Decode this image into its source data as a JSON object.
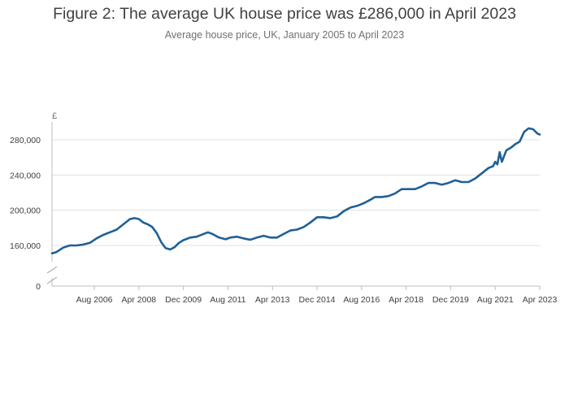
{
  "title": "Figure 2: The average UK house price was £286,000 in April 2023",
  "subtitle": "Average house price, UK, January 2005 to April 2023",
  "chart_data": {
    "type": "line",
    "ylabel": "£",
    "y_break": true,
    "y_baseline_label": "0",
    "yticks": [
      160000,
      200000,
      240000,
      280000
    ],
    "ytick_labels": [
      "160,000",
      "200,000",
      "240,000",
      "280,000"
    ],
    "ylim": [
      150000,
      300000
    ],
    "xlim": [
      "2005-01",
      "2023-04"
    ],
    "xticks": [
      "2006-08",
      "2008-04",
      "2009-12",
      "2011-08",
      "2013-04",
      "2014-12",
      "2016-08",
      "2018-04",
      "2019-12",
      "2021-08",
      "2023-04"
    ],
    "xtick_labels": [
      "Aug 2006",
      "Apr 2008",
      "Dec 2009",
      "Aug 2011",
      "Apr 2013",
      "Dec 2014",
      "Aug 2016",
      "Apr 2018",
      "Dec 2019",
      "Aug 2021",
      "Apr 2023"
    ],
    "grid": "horizontal",
    "color": "#206095",
    "series": [
      {
        "points": [
          [
            "2005-01",
            151000
          ],
          [
            "2005-03",
            152500
          ],
          [
            "2005-06",
            157500
          ],
          [
            "2005-09",
            160000
          ],
          [
            "2005-12",
            160000
          ],
          [
            "2006-03",
            161000
          ],
          [
            "2006-06",
            163000
          ],
          [
            "2006-09",
            168000
          ],
          [
            "2006-12",
            172000
          ],
          [
            "2007-03",
            175000
          ],
          [
            "2007-06",
            178000
          ],
          [
            "2007-09",
            184000
          ],
          [
            "2007-12",
            190000
          ],
          [
            "2008-02",
            191000
          ],
          [
            "2008-04",
            190000
          ],
          [
            "2008-06",
            186000
          ],
          [
            "2008-08",
            184000
          ],
          [
            "2008-10",
            181000
          ],
          [
            "2008-12",
            174000
          ],
          [
            "2009-02",
            164000
          ],
          [
            "2009-04",
            157000
          ],
          [
            "2009-06",
            155500
          ],
          [
            "2009-08",
            158000
          ],
          [
            "2009-10",
            163000
          ],
          [
            "2009-12",
            166000
          ],
          [
            "2010-03",
            169000
          ],
          [
            "2010-06",
            170000
          ],
          [
            "2010-09",
            173000
          ],
          [
            "2010-11",
            175000
          ],
          [
            "2011-01",
            173000
          ],
          [
            "2011-04",
            169000
          ],
          [
            "2011-07",
            167000
          ],
          [
            "2011-09",
            169000
          ],
          [
            "2011-12",
            170000
          ],
          [
            "2012-03",
            168000
          ],
          [
            "2012-06",
            166500
          ],
          [
            "2012-09",
            169000
          ],
          [
            "2012-12",
            171000
          ],
          [
            "2013-03",
            169000
          ],
          [
            "2013-06",
            169000
          ],
          [
            "2013-09",
            173000
          ],
          [
            "2013-12",
            177000
          ],
          [
            "2014-03",
            178000
          ],
          [
            "2014-06",
            181000
          ],
          [
            "2014-09",
            186000
          ],
          [
            "2014-12",
            192000
          ],
          [
            "2015-03",
            192000
          ],
          [
            "2015-06",
            191000
          ],
          [
            "2015-09",
            193000
          ],
          [
            "2015-12",
            199000
          ],
          [
            "2016-03",
            203000
          ],
          [
            "2016-06",
            205000
          ],
          [
            "2016-09",
            208000
          ],
          [
            "2016-12",
            212000
          ],
          [
            "2017-02",
            215000
          ],
          [
            "2017-05",
            215000
          ],
          [
            "2017-08",
            216000
          ],
          [
            "2017-11",
            219000
          ],
          [
            "2018-02",
            224000
          ],
          [
            "2018-05",
            224000
          ],
          [
            "2018-08",
            224000
          ],
          [
            "2018-11",
            227000
          ],
          [
            "2019-02",
            231000
          ],
          [
            "2019-05",
            231000
          ],
          [
            "2019-08",
            229000
          ],
          [
            "2019-11",
            231000
          ],
          [
            "2020-02",
            234000
          ],
          [
            "2020-05",
            232000
          ],
          [
            "2020-08",
            232000
          ],
          [
            "2020-11",
            236000
          ],
          [
            "2021-02",
            242000
          ],
          [
            "2021-05",
            248000
          ],
          [
            "2021-07",
            250000
          ],
          [
            "2021-08",
            255000
          ],
          [
            "2021-09",
            252000
          ],
          [
            "2021-10",
            266000
          ],
          [
            "2021-11",
            255000
          ],
          [
            "2022-01",
            268000
          ],
          [
            "2022-03",
            271000
          ],
          [
            "2022-05",
            275000
          ],
          [
            "2022-07",
            278000
          ],
          [
            "2022-09",
            289000
          ],
          [
            "2022-11",
            293000
          ],
          [
            "2023-01",
            292000
          ],
          [
            "2023-03",
            287000
          ],
          [
            "2023-04",
            286000
          ]
        ]
      }
    ]
  }
}
